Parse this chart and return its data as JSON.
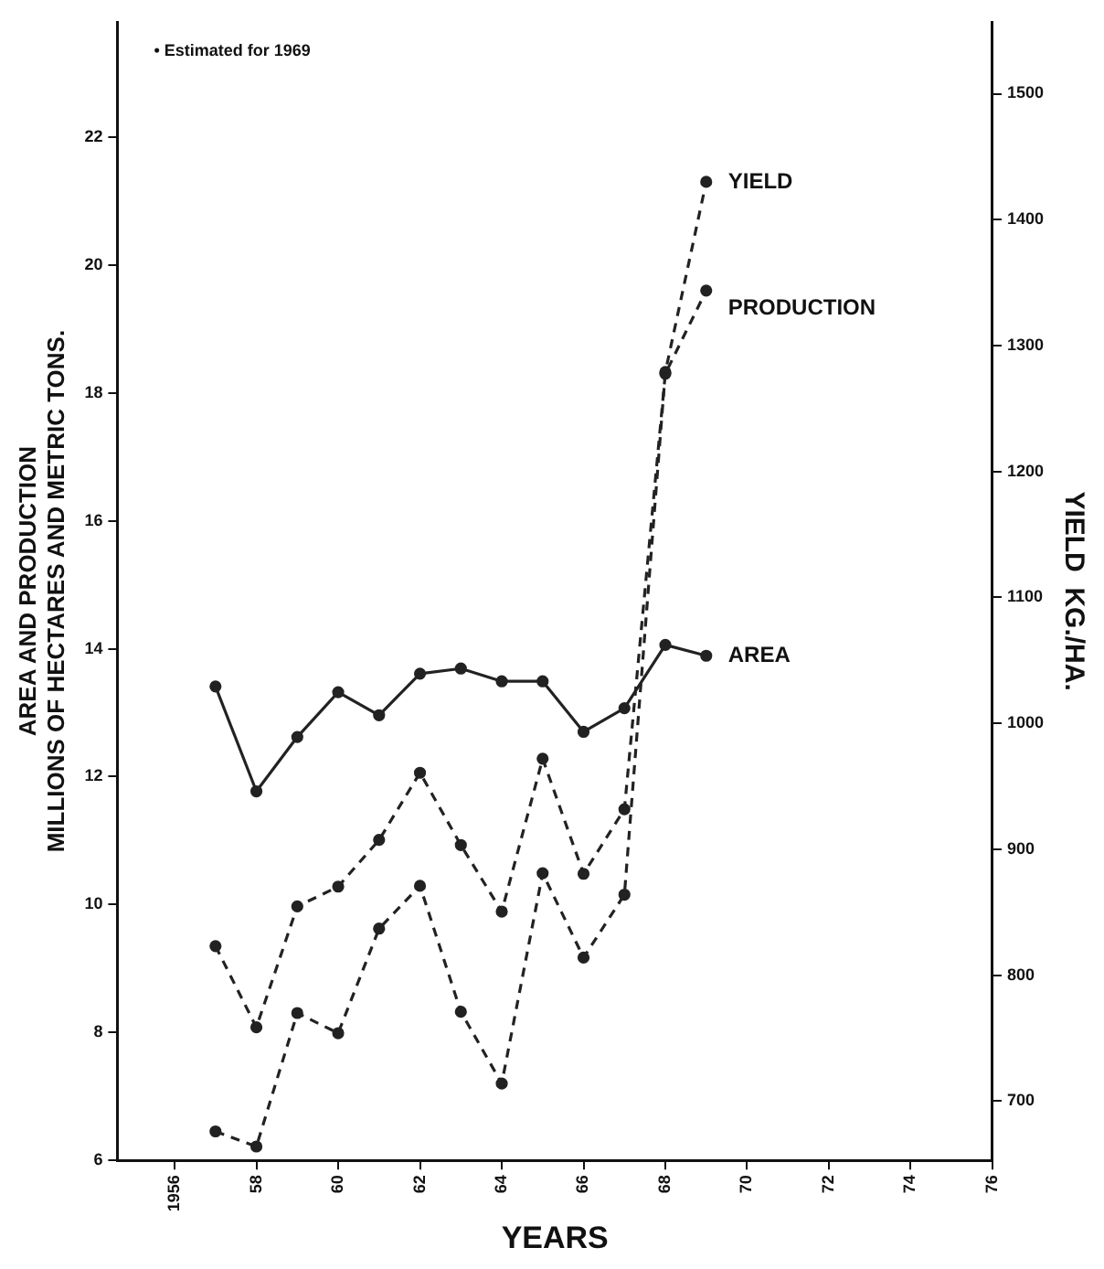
{
  "chart_data": {
    "type": "line",
    "x": [
      1957,
      1958,
      1959,
      1960,
      1961,
      1962,
      1963,
      1964,
      1965,
      1966,
      1967,
      1968,
      1969
    ],
    "series": [
      {
        "name": "AREA",
        "color": "#222222",
        "line_style": "solid",
        "values": [
          13.41,
          11.77,
          12.62,
          13.32,
          12.96,
          13.61,
          13.69,
          13.49,
          13.49,
          12.7,
          13.07,
          14.06,
          13.89
        ]
      },
      {
        "name": "PRODUCTION",
        "color": "#222222",
        "line_style": "dashed",
        "values": [
          9.35,
          8.08,
          9.97,
          10.28,
          11.01,
          12.06,
          10.93,
          9.89,
          12.28,
          10.48,
          11.49,
          18.3,
          19.6
        ]
      },
      {
        "name": "YIELD",
        "color": "#222222",
        "line_style": "dashed",
        "axis": "y2",
        "values": [
          676,
          664,
          770,
          754,
          837,
          871,
          771,
          714,
          881,
          814,
          864,
          1279,
          1430
        ]
      }
    ],
    "marker": "circle",
    "legend": false,
    "grid": false,
    "xlabel": "YEARS",
    "ylabel": "AREA AND PRODUCTION\nMILLIONS OF HECTARES AND METRIC TONS.",
    "y2label": "YIELD  KG./HA.",
    "xlim": [
      1954.6,
      1976
    ],
    "xticks": [
      {
        "value": 1956,
        "label": "1956"
      },
      {
        "value": 1958,
        "label": "58"
      },
      {
        "value": 1960,
        "label": "60"
      },
      {
        "value": 1962,
        "label": "62"
      },
      {
        "value": 1964,
        "label": "64"
      },
      {
        "value": 1966,
        "label": "66"
      },
      {
        "value": 1968,
        "label": "68"
      },
      {
        "value": 1970,
        "label": "70"
      },
      {
        "value": 1972,
        "label": "72"
      },
      {
        "value": 1974,
        "label": "74"
      },
      {
        "value": 1976,
        "label": "76"
      }
    ],
    "ylim": [
      6,
      23.8
    ],
    "yticks": [
      6,
      8,
      10,
      12,
      14,
      16,
      18,
      20,
      22
    ],
    "y2lim": [
      653,
      1557
    ],
    "y2ticks": [
      700,
      800,
      900,
      1000,
      1100,
      1200,
      1300,
      1400,
      1500
    ],
    "annotations": [
      "• Estimated for 1969"
    ]
  }
}
